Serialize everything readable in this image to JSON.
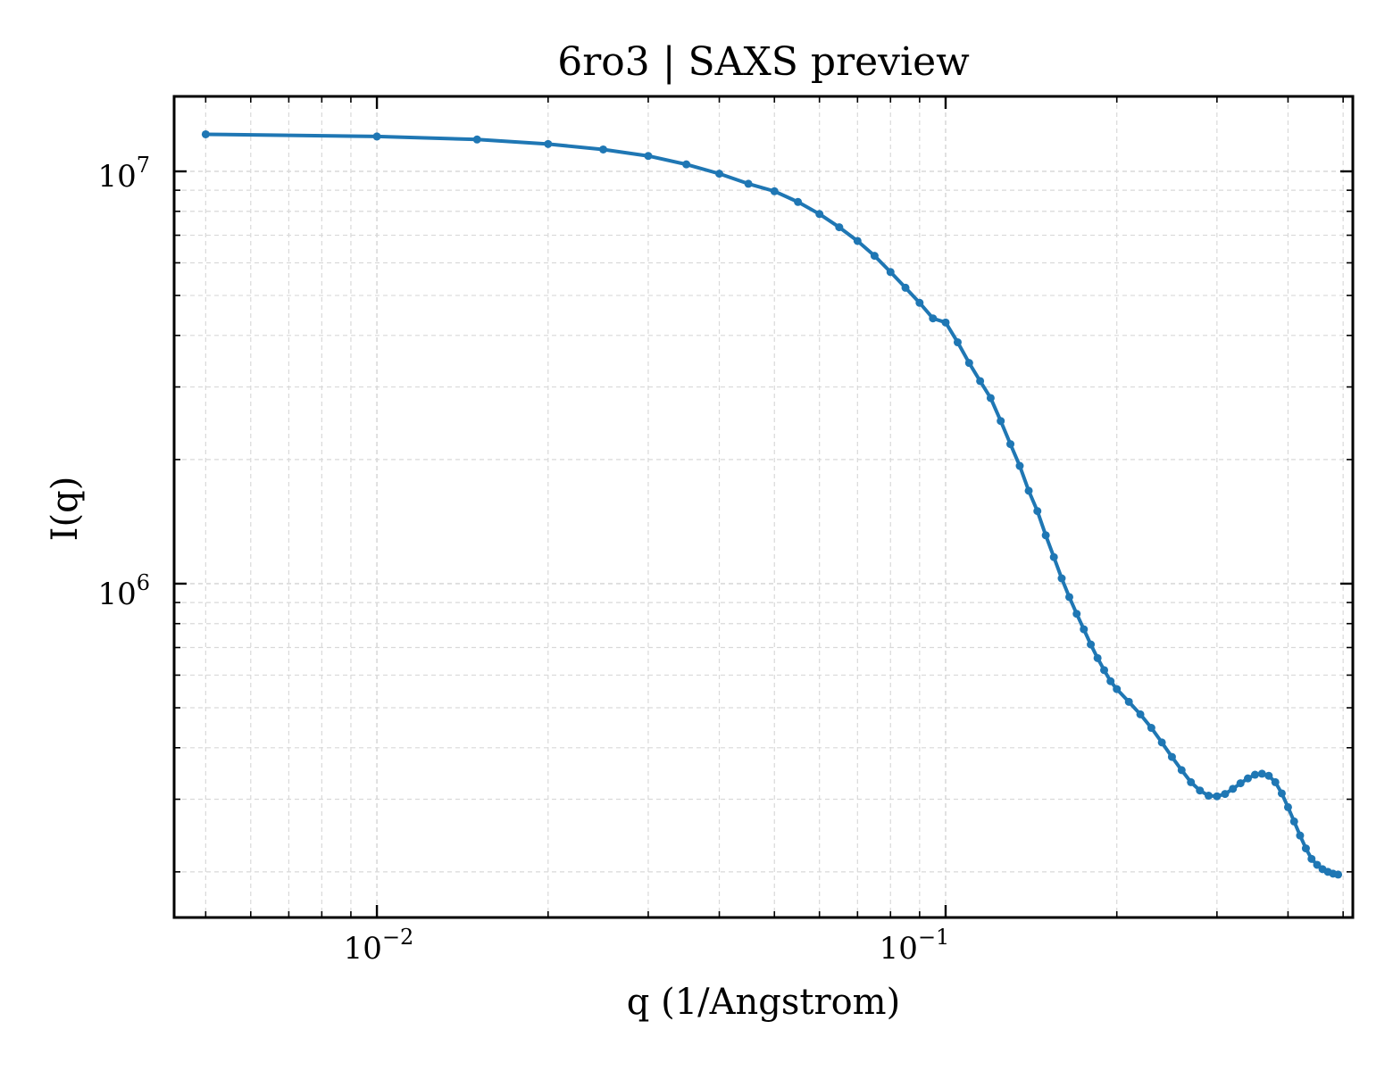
{
  "chart_data": {
    "type": "line",
    "title": "6ro3 | SAXS preview",
    "xlabel": "q (1/Angstrom)",
    "ylabel": "I(q)",
    "xscale": "log",
    "yscale": "log",
    "xlim": [
      0.0044,
      0.52
    ],
    "ylim": [
      155000,
      15200000
    ],
    "grid": true,
    "legend": "none",
    "x_ticks": [
      {
        "value": 0.01,
        "base": "10",
        "exponent": "−2"
      },
      {
        "value": 0.1,
        "base": "10",
        "exponent": "−1"
      }
    ],
    "y_ticks": [
      {
        "value": 1000000,
        "base": "10",
        "exponent": "6"
      },
      {
        "value": 10000000,
        "base": "10",
        "exponent": "7"
      }
    ],
    "series": [
      {
        "color": "#1f77b4",
        "points": [
          [
            0.005,
            12300000
          ],
          [
            0.01,
            12150000
          ],
          [
            0.015,
            11950000
          ],
          [
            0.02,
            11650000
          ],
          [
            0.025,
            11300000
          ],
          [
            0.03,
            10900000
          ],
          [
            0.035,
            10400000
          ],
          [
            0.04,
            9870000
          ],
          [
            0.045,
            9330000
          ],
          [
            0.05,
            8950000
          ],
          [
            0.055,
            8430000
          ],
          [
            0.06,
            7880000
          ],
          [
            0.065,
            7320000
          ],
          [
            0.07,
            6780000
          ],
          [
            0.075,
            6240000
          ],
          [
            0.08,
            5700000
          ],
          [
            0.085,
            5220000
          ],
          [
            0.09,
            4800000
          ],
          [
            0.095,
            4400000
          ],
          [
            0.1,
            4300000
          ],
          [
            0.105,
            3850000
          ],
          [
            0.11,
            3430000
          ],
          [
            0.115,
            3100000
          ],
          [
            0.12,
            2820000
          ],
          [
            0.125,
            2480000
          ],
          [
            0.13,
            2180000
          ],
          [
            0.135,
            1930000
          ],
          [
            0.14,
            1680000
          ],
          [
            0.145,
            1500000
          ],
          [
            0.15,
            1310000
          ],
          [
            0.155,
            1160000
          ],
          [
            0.16,
            1030000
          ],
          [
            0.165,
            928000
          ],
          [
            0.17,
            845000
          ],
          [
            0.175,
            775000
          ],
          [
            0.18,
            712000
          ],
          [
            0.185,
            660000
          ],
          [
            0.19,
            617000
          ],
          [
            0.195,
            580000
          ],
          [
            0.2,
            555000
          ],
          [
            0.21,
            517000
          ],
          [
            0.22,
            482000
          ],
          [
            0.23,
            447000
          ],
          [
            0.24,
            412000
          ],
          [
            0.25,
            380000
          ],
          [
            0.26,
            353000
          ],
          [
            0.27,
            330000
          ],
          [
            0.28,
            315000
          ],
          [
            0.29,
            306000
          ],
          [
            0.3,
            305000
          ],
          [
            0.31,
            309000
          ],
          [
            0.32,
            318000
          ],
          [
            0.33,
            328000
          ],
          [
            0.34,
            337000
          ],
          [
            0.35,
            344000
          ],
          [
            0.36,
            346000
          ],
          [
            0.37,
            342000
          ],
          [
            0.38,
            330000
          ],
          [
            0.39,
            310000
          ],
          [
            0.4,
            287000
          ],
          [
            0.41,
            265000
          ],
          [
            0.42,
            245000
          ],
          [
            0.43,
            228000
          ],
          [
            0.44,
            215000
          ],
          [
            0.45,
            208000
          ],
          [
            0.46,
            203000
          ],
          [
            0.47,
            200000
          ],
          [
            0.48,
            198000
          ],
          [
            0.49,
            197000
          ]
        ]
      }
    ]
  }
}
